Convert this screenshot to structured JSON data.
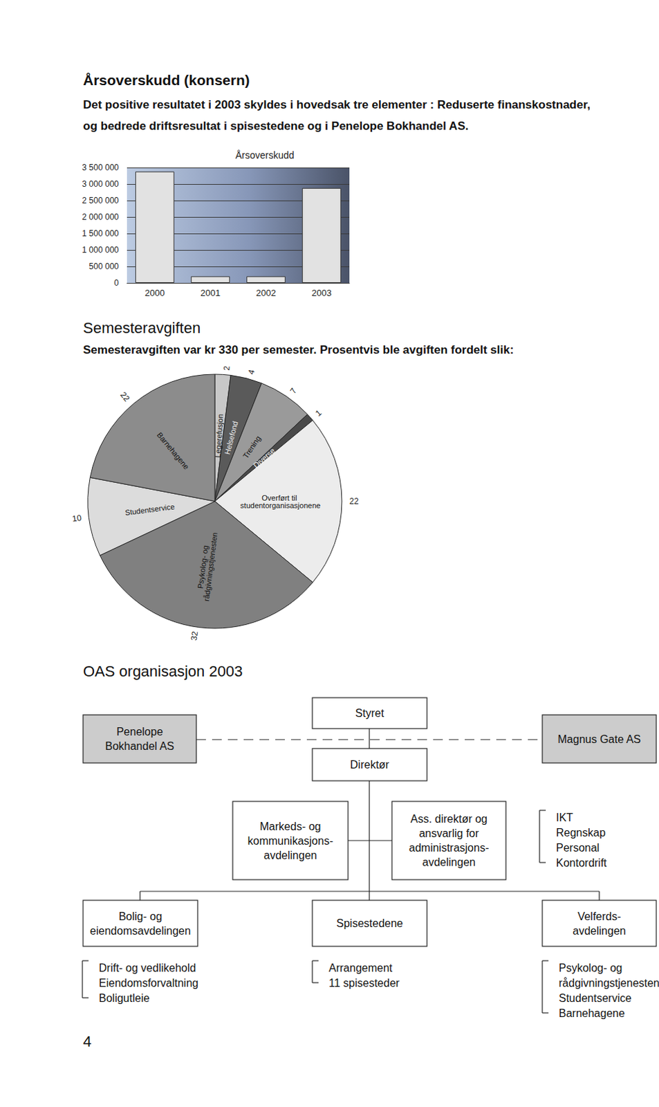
{
  "heading": "Årsoverskudd (konsern)",
  "intro": [
    "Det positive resultatet i 2003 skyldes i hovedsak tre elementer : Reduserte finanskostnader,",
    "og bedrede driftsresultat i spisestedene og i Penelope Bokhandel AS."
  ],
  "chart_data": [
    {
      "type": "bar",
      "title": "Årsoverskudd",
      "categories": [
        "2000",
        "2001",
        "2002",
        "2003"
      ],
      "values": [
        3380000,
        200000,
        200000,
        2880000
      ],
      "color": "#e2e2e2",
      "ylim": [
        0,
        3500000
      ],
      "yticks": [
        0,
        {
          "value": 500000,
          "label": "500 000"
        },
        {
          "value": 1000000,
          "label": "1 000 000"
        },
        {
          "value": 1500000,
          "label": "1 500 000"
        },
        {
          "value": 2000000,
          "label": "2 000 000"
        },
        {
          "value": 2500000,
          "label": "2 500 000"
        },
        {
          "value": 3000000,
          "label": "3 000 000"
        },
        {
          "value": 3500000,
          "label": "3 500 000"
        }
      ],
      "grid": true
    },
    {
      "type": "pie",
      "categories": [
        "Legerefusjon",
        "Helsefond",
        "Trening",
        "Diverse",
        "Overført til studentorganisasjonene",
        "Psykolog- og rådgivningstjenesten",
        "Studentservice",
        "Barnehagene"
      ],
      "values": [
        2,
        4,
        7,
        1,
        22,
        32,
        10,
        22
      ],
      "colors": [
        "#c8c8c8",
        "#5a5a5a",
        "#9a9a9a",
        "#4a4a4a",
        "#ececec",
        "#808080",
        "#dcdcdc",
        "#8c8c8c"
      ],
      "data_labels": true
    }
  ],
  "section": {
    "title": "Semesteravgiften",
    "text": "Semesteravgiften var kr 330 per semester. Prosentvis ble avgiften fordelt slik:"
  },
  "org": {
    "title": "OAS organisasjon 2003",
    "nodes": [
      {
        "lines": [
          "Styret"
        ]
      },
      {
        "lines": [
          "Direktør"
        ]
      },
      {
        "lines": [
          "Penelope",
          "Bokhandel AS"
        ]
      },
      {
        "lines": [
          "Magnus Gate AS"
        ]
      },
      {
        "lines": [
          "Markeds- og",
          "kommunikasjons-",
          "avdelingen"
        ]
      },
      {
        "lines": [
          "Ass. direktør og",
          "ansvarlig for",
          "administrasjons-",
          "avdelingen"
        ],
        "items": [
          "IKT",
          "Regnskap",
          "Personal",
          "Kontordrift"
        ]
      },
      {
        "lines": [
          "Bolig- og",
          "eiendomsavdelingen"
        ],
        "items": [
          "Drift- og vedlikehold",
          "Eiendomsforvaltning",
          "Boligutleie"
        ]
      },
      {
        "lines": [
          "Spisestedene"
        ],
        "items": [
          "Arrangement",
          "11 spisesteder"
        ]
      },
      {
        "lines": [
          "Velferds-",
          "avdelingen"
        ],
        "items": [
          "Psykolog- og",
          "rådgivningstjenesten",
          "Studentservice",
          "Barnehagene"
        ]
      }
    ]
  },
  "page_number": "4"
}
